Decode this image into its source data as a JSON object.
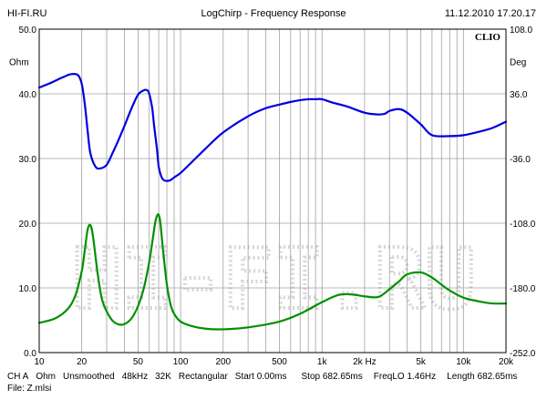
{
  "header": {
    "left": "HI-FI.RU",
    "center": "LogChirp - Frequency Response",
    "right": "11.12.2010 17.20.17"
  },
  "brand_mark": "CLIO",
  "watermark": "HI-FI.RU",
  "footer": {
    "line1": [
      "CH A",
      "Ohm",
      "Unsmoothed",
      "48kHz",
      "32K",
      "Rectangular",
      "Start 0.00ms",
      "Stop 682.65ms",
      "FreqLO 1.46Hz",
      "Length 682.65ms"
    ],
    "line2": "File: Z.mlsi"
  },
  "colors": {
    "impedance": "#009000",
    "phase": "#0000e0",
    "grid": "#a0a0a0",
    "watermark": "#d6d6d6"
  },
  "chart_data": {
    "type": "line",
    "x_scale": "log",
    "xlim": [
      10,
      20000
    ],
    "x_ticks": [
      {
        "value": 10,
        "label": "10"
      },
      {
        "value": 20,
        "label": "20"
      },
      {
        "value": 50,
        "label": "50"
      },
      {
        "value": 100,
        "label": "100"
      },
      {
        "value": 200,
        "label": "200"
      },
      {
        "value": 500,
        "label": "500"
      },
      {
        "value": 1000,
        "label": "1k"
      },
      {
        "value": 2000,
        "label": "2k Hz"
      },
      {
        "value": 5000,
        "label": "5k"
      },
      {
        "value": 10000,
        "label": "10k"
      },
      {
        "value": 20000,
        "label": "20k"
      }
    ],
    "y_left": {
      "unit": "Ohm",
      "ylim": [
        0,
        50
      ],
      "ticks": [
        "0.0",
        "10.0",
        "20.0",
        "30.0",
        "40.0",
        "50.0"
      ]
    },
    "y_right": {
      "unit": "Deg",
      "ylim": [
        -252,
        108
      ],
      "ticks": [
        "-252.0",
        "-180.0",
        "-108.0",
        "-36.0",
        "36.0",
        "108.0"
      ]
    },
    "grid": true,
    "series": [
      {
        "axis": "left",
        "color": "#009000",
        "x": [
          10,
          13,
          16,
          18,
          20,
          21,
          22,
          23,
          24,
          26,
          28,
          32,
          36,
          40,
          45,
          50,
          55,
          60,
          63,
          66,
          68,
          70,
          72,
          75,
          80,
          85,
          90,
          100,
          120,
          150,
          200,
          300,
          500,
          700,
          1000,
          1300,
          1600,
          2000,
          2500,
          3000,
          3500,
          4000,
          5000,
          6000,
          7000,
          8000,
          10000,
          13000,
          16000,
          20000
        ],
        "values": [
          4.6,
          5.3,
          6.8,
          8.8,
          12.6,
          15.8,
          19.0,
          19.7,
          18.0,
          12.0,
          8.0,
          5.3,
          4.4,
          4.4,
          5.3,
          7.2,
          10.0,
          14.0,
          17.0,
          20.0,
          21.1,
          21.3,
          20.0,
          16.0,
          10.5,
          7.4,
          6.0,
          4.8,
          4.1,
          3.7,
          3.6,
          3.9,
          4.8,
          6.0,
          7.8,
          8.9,
          9.0,
          8.7,
          8.6,
          9.8,
          11.0,
          12.1,
          12.4,
          11.6,
          10.5,
          9.6,
          8.5,
          7.9,
          7.6,
          7.6
        ]
      },
      {
        "axis": "right",
        "color": "#0000e0",
        "x": [
          10,
          12,
          14,
          15,
          16,
          17,
          18,
          19,
          20,
          21,
          22,
          23,
          25,
          27,
          30,
          33,
          36,
          40,
          45,
          50,
          55,
          58,
          60,
          63,
          65,
          68,
          70,
          73,
          76,
          80,
          85,
          90,
          100,
          120,
          150,
          200,
          300,
          400,
          500,
          600,
          700,
          800,
          900,
          1000,
          1200,
          1500,
          2000,
          2500,
          2800,
          3000,
          3500,
          4000,
          5000,
          6000,
          8000,
          10000,
          13000,
          16000,
          20000
        ],
        "values": [
          43,
          48,
          53,
          55,
          57,
          58,
          58,
          56,
          47,
          25,
          -5,
          -30,
          -45,
          -47,
          -43,
          -30,
          -17,
          0,
          20,
          35,
          40,
          40,
          36,
          20,
          0,
          -25,
          -45,
          -56,
          -60,
          -61,
          -60,
          -57,
          -52,
          -40,
          -25,
          -7,
          11,
          20,
          24,
          27,
          29,
          30,
          30,
          30,
          26,
          22,
          15,
          13,
          14,
          17,
          19,
          15,
          2,
          -10,
          -11,
          -10,
          -6,
          -2,
          5
        ]
      }
    ]
  }
}
